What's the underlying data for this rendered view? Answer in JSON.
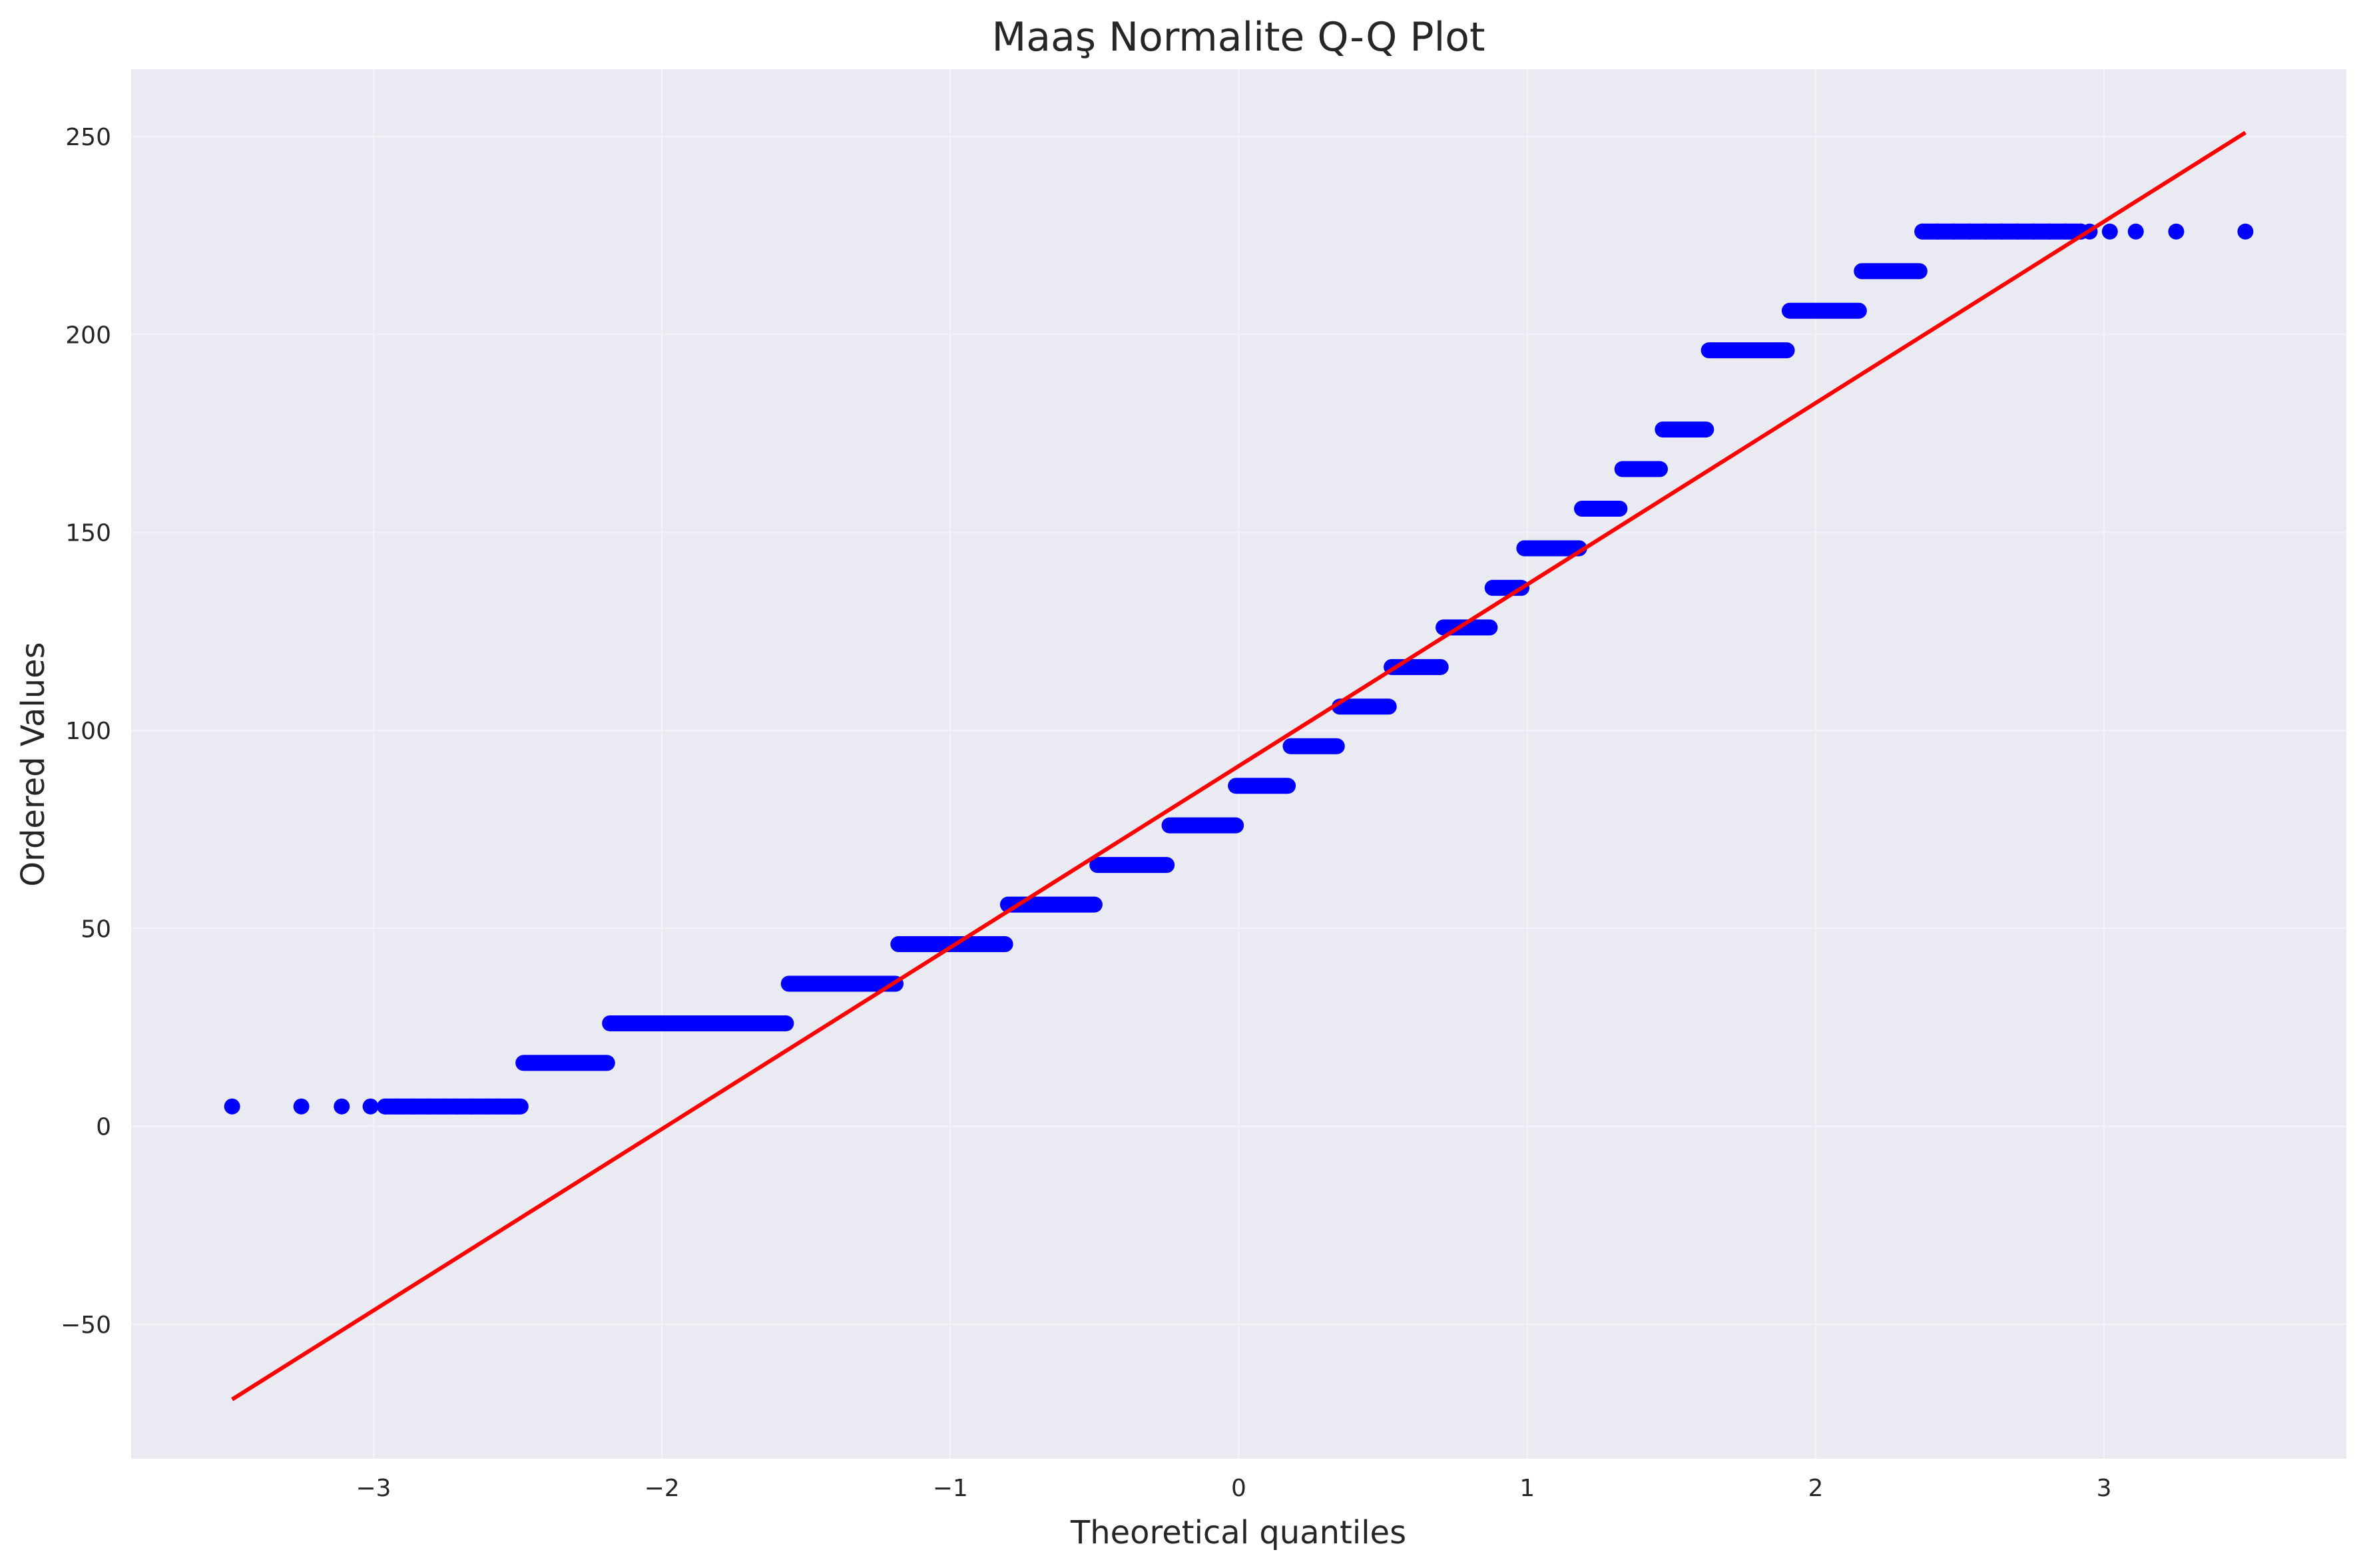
{
  "chart_data": {
    "type": "scatter",
    "title": "Maaş Normalite Q-Q Plot",
    "xlabel": "Theoretical quantiles",
    "ylabel": "Ordered Values",
    "xlim": [
      -3.84,
      3.84
    ],
    "ylim": [
      -84,
      267
    ],
    "x_ticks": [
      -3,
      -2,
      -1,
      0,
      1,
      2,
      3
    ],
    "x_tick_labels": [
      "−3",
      "−2",
      "−1",
      "0",
      "1",
      "2",
      "3"
    ],
    "y_ticks": [
      -50,
      0,
      50,
      100,
      150,
      200,
      250
    ],
    "y_tick_labels": [
      "−50",
      "0",
      "50",
      "100",
      "150",
      "200",
      "250"
    ],
    "grid": true,
    "background_color": "#eaeaf2",
    "grid_color": "#f4f4f8",
    "point_color": "#0000ff",
    "line_color": "#ff0000",
    "steps": [
      {
        "y": 5,
        "x_from": -2.96,
        "x_to": -2.49
      },
      {
        "y": 16,
        "x_from": -2.48,
        "x_to": -2.19
      },
      {
        "y": 26,
        "x_from": -2.18,
        "x_to": -1.57
      },
      {
        "y": 36,
        "x_from": -1.56,
        "x_to": -1.19
      },
      {
        "y": 46,
        "x_from": -1.18,
        "x_to": -0.81
      },
      {
        "y": 56,
        "x_from": -0.8,
        "x_to": -0.5
      },
      {
        "y": 66,
        "x_from": -0.49,
        "x_to": -0.25
      },
      {
        "y": 76,
        "x_from": -0.24,
        "x_to": -0.01
      },
      {
        "y": 86,
        "x_from": -0.01,
        "x_to": 0.17
      },
      {
        "y": 96,
        "x_from": 0.18,
        "x_to": 0.34
      },
      {
        "y": 106,
        "x_from": 0.35,
        "x_to": 0.52
      },
      {
        "y": 116,
        "x_from": 0.53,
        "x_to": 0.7
      },
      {
        "y": 126,
        "x_from": 0.71,
        "x_to": 0.87
      },
      {
        "y": 136,
        "x_from": 0.88,
        "x_to": 0.98
      },
      {
        "y": 146,
        "x_from": 0.99,
        "x_to": 1.18
      },
      {
        "y": 156,
        "x_from": 1.19,
        "x_to": 1.32
      },
      {
        "y": 166,
        "x_from": 1.33,
        "x_to": 1.46
      },
      {
        "y": 176,
        "x_from": 1.47,
        "x_to": 1.62
      },
      {
        "y": 196,
        "x_from": 1.63,
        "x_to": 1.9
      },
      {
        "y": 206,
        "x_from": 1.91,
        "x_to": 2.15
      },
      {
        "y": 216,
        "x_from": 2.16,
        "x_to": 2.36
      }
    ],
    "isolated_points": [
      {
        "x": -3.49,
        "y": 5
      },
      {
        "x": -3.25,
        "y": 5
      },
      {
        "x": -3.11,
        "y": 5
      },
      {
        "x": -3.01,
        "y": 5
      },
      {
        "x": 2.95,
        "y": 226
      },
      {
        "x": 3.02,
        "y": 226
      },
      {
        "x": 3.11,
        "y": 226
      },
      {
        "x": 3.25,
        "y": 226
      },
      {
        "x": 3.49,
        "y": 226
      }
    ],
    "top_step": {
      "y": 226,
      "x_from": 2.37,
      "x_to": 2.92
    },
    "fit_line": {
      "x": [
        -3.49,
        3.49
      ],
      "y": [
        -69,
        251
      ]
    }
  }
}
